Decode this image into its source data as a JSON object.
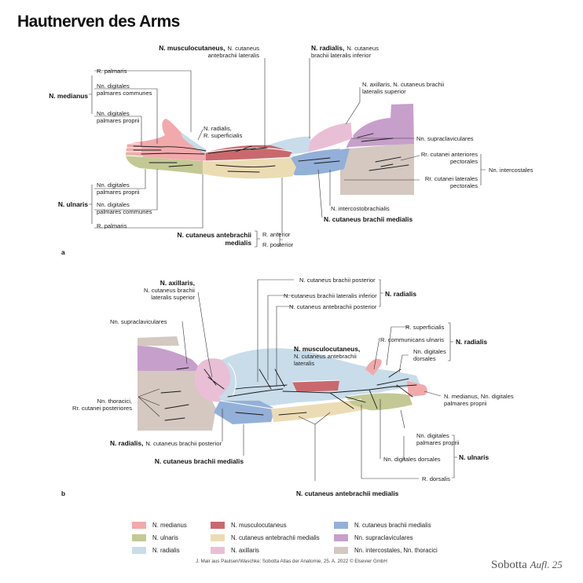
{
  "title": "Hautnerven des Arms",
  "colors": {
    "medianus": "#f2a9ab",
    "musculocutaneus": "#c9696d",
    "brachii_medialis": "#93b0d8",
    "ulnaris": "#c3c995",
    "antebrachii_medialis": "#ecdcb4",
    "supraclaviculares": "#c79fcb",
    "radialis": "#c8dcea",
    "axillaris": "#e9bfd6",
    "intercostales": "#d4c8c0"
  },
  "figure_a": {
    "panel_label": "a",
    "median_group": "N. medianus",
    "median_1": "R. palmaris",
    "median_2a": "Nn. digitales",
    "median_2b": "palmares communes",
    "median_3a": "Nn. digitales",
    "median_3b": "palmares proprii",
    "ulnar_group": "N. ulnaris",
    "ulnar_1a": "Nn. digitales",
    "ulnar_1b": "palmares proprii",
    "ulnar_2a": "Nn. digitales",
    "ulnar_2b": "palmares communes",
    "ulnar_3": "R. palmaris",
    "musc_bold": "N. musculocutaneus,",
    "musc_rest": "N. cutaneus",
    "musc_line2": "antebrachii lateralis",
    "rad_bold": "N. radialis,",
    "rad_rest": "N. cutaneus",
    "rad_line2": "brachii lateralis inferior",
    "radsup_1": "N. radialis,",
    "radsup_2": "R. superficialis",
    "ax_1": "N. axillaris, N. cutaneus brachii",
    "ax_2": "lateralis superior",
    "supra": "Nn. supraclaviculares",
    "ant_1": "Rr. cutanei anteriores",
    "ant_2": "pectorales",
    "lat_1": "Rr. cutanei laterales",
    "lat_2": "pectorales",
    "intercostales": "Nn. intercostales",
    "intercostobrachialis": "N. intercostobrachialis",
    "brachii_medialis": "N. cutaneus brachii medialis",
    "antebrachii_1": "N. cutaneus antebrachii",
    "antebrachii_2": "medialis",
    "r_anterior": "R. anterior",
    "r_posterior": "R. posterior"
  },
  "figure_b": {
    "panel_label": "b",
    "ax_bold": "N. axillaris,",
    "ax_2": "N. cutaneus brachii",
    "ax_3": "lateralis superior",
    "supra": "Nn. supraclaviculares",
    "thor_1": "Nn. thoracici,",
    "thor_2": "Rr. cutanei posteriores",
    "rad_post_bold": "N. radialis,",
    "rad_post_rest": "N. cutaneus brachii posterior",
    "brachii_medialis": "N. cutaneus brachii medialis",
    "antebrachii_medialis": "N. cutaneus antebrachii medialis",
    "top_1": "N. cutaneus brachii posterior",
    "top_2": "N. cutaneus brachii lateralis inferior",
    "top_3": "N. cutaneus antebrachii posterior",
    "radialis_group": "N. radialis",
    "musc_bold": "N. musculocutaneus,",
    "musc_2": "N. cutaneus antebrachii",
    "musc_3": "lateralis",
    "r_superficialis": "R. superficialis",
    "r_communicans": "R. communicans ulnaris",
    "dig_dors_1": "Nn. digitales",
    "dig_dors_2": "dorsales",
    "radialis_group2": "N. radialis",
    "median_1": "N. medianus, Nn. digitales",
    "median_2": "palmares proprii",
    "uln_1a": "Nn. digitales",
    "uln_1b": "palmares proprii",
    "uln_2": "Nn. digitales dorsales",
    "uln_3": "R. dorsalis",
    "ulnaris_group": "N. ulnaris"
  },
  "legend": [
    {
      "label": "N. medianus",
      "color": "#f2a9ab"
    },
    {
      "label": "N. musculocutaneus",
      "color": "#c9696d"
    },
    {
      "label": "N. cutaneus brachii medialis",
      "color": "#93b0d8"
    },
    {
      "label": "N. ulnaris",
      "color": "#c3c995"
    },
    {
      "label": "N. cutaneus antebrachii medialis",
      "color": "#ecdcb4"
    },
    {
      "label": "Nn. supraclaviculares",
      "color": "#c79fcb"
    },
    {
      "label": "N. radialis",
      "color": "#c8dcea"
    },
    {
      "label": "N. axillaris",
      "color": "#e9bfd6"
    },
    {
      "label": "Nn. intercostales, Nn. thoracici",
      "color": "#d4c8c0"
    }
  ],
  "credit": "J. Mair aus Paulsen/Waschke: Sobotta Atlas der Anatomie, 25. A. 2022 © Elsevier GmbH",
  "brand": "Sobotta",
  "edition": "Aufl. 25"
}
